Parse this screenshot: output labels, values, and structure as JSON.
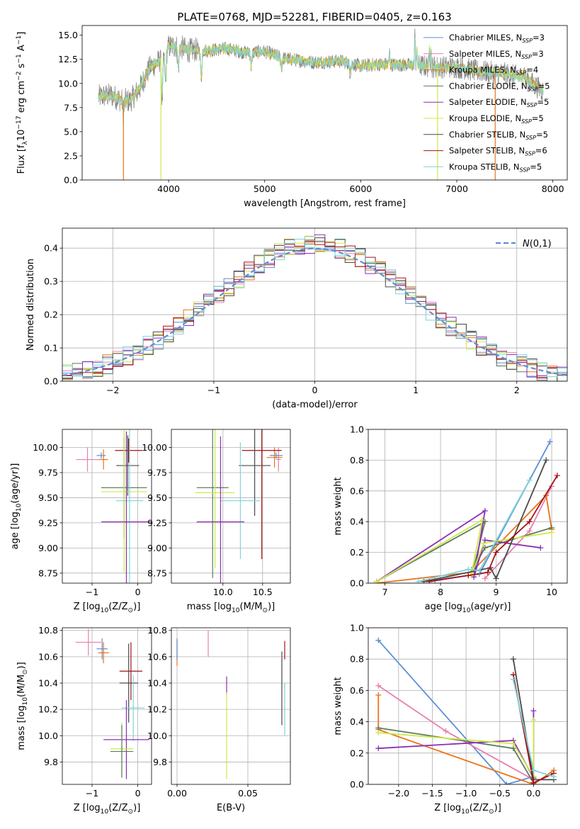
{
  "figure": {
    "title": "PLATE=0768, MJD=52281, FIBERID=0405, z=0.163"
  },
  "colors": {
    "chabrier_miles": "#5b8fd6",
    "salpeter_miles": "#e77fb0",
    "kroupa_miles": "#e8731a",
    "chabrier_elodie": "#5c7a5f",
    "salpeter_elodie": "#8b2fb3",
    "kroupa_elodie": "#cde84a",
    "chabrier_stelib": "#4a4a4a",
    "salpeter_stelib": "#a31313",
    "kroupa_stelib": "#7fd3dc",
    "data": "#808080",
    "gauss": "#5b8fd6",
    "grid": "#b0b0b0"
  },
  "legend_entries": [
    {
      "label": "Chabrier MILES, N",
      "sub": "SSP",
      "suffix": "=3",
      "color_key": "chabrier_miles"
    },
    {
      "label": "Salpeter MILES, N",
      "sub": "SSP",
      "suffix": "=3",
      "color_key": "salpeter_miles"
    },
    {
      "label": "Kroupa MILES, N",
      "sub": "SSP",
      "suffix": "=4",
      "color_key": "kroupa_miles"
    },
    {
      "label": "Chabrier ELODIE, N",
      "sub": "SSP",
      "suffix": "=5",
      "color_key": "chabrier_elodie"
    },
    {
      "label": "Salpeter ELODIE, N",
      "sub": "SSP",
      "suffix": "=5",
      "color_key": "salpeter_elodie"
    },
    {
      "label": "Kroupa ELODIE, N",
      "sub": "SSP",
      "suffix": "=5",
      "color_key": "kroupa_elodie"
    },
    {
      "label": "Chabrier STELIB, N",
      "sub": "SSP",
      "suffix": "=5",
      "color_key": "chabrier_stelib"
    },
    {
      "label": "Salpeter STELIB, N",
      "sub": "SSP",
      "suffix": "=6",
      "color_key": "salpeter_stelib"
    },
    {
      "label": "Kroupa STELIB, N",
      "sub": "SSP",
      "suffix": "=5",
      "color_key": "kroupa_stelib"
    }
  ],
  "chart_data": [
    {
      "id": "spectrum",
      "type": "line",
      "title": "PLATE=0768, MJD=52281, FIBERID=0405, z=0.163",
      "xlabel": "wavelength [Angstrom, rest frame]",
      "ylabel": "Flux [f$_\\lambda$10$^{-17}$ erg cm$^{-2}$ s$^{-1}$ A$^{-1}$]",
      "xlim": [
        3100,
        8150
      ],
      "ylim": [
        0,
        16
      ],
      "xticks": [
        4000,
        5000,
        6000,
        7000,
        8000
      ],
      "yticks": [
        0.0,
        2.5,
        5.0,
        7.5,
        10.0,
        12.5,
        15.0
      ],
      "grid": false,
      "legend": "upper right",
      "continuum": [
        [
          3270,
          8.6
        ],
        [
          3400,
          8.8
        ],
        [
          3500,
          8.3
        ],
        [
          3600,
          8.2
        ],
        [
          3700,
          9.5
        ],
        [
          3800,
          11.6
        ],
        [
          3900,
          12.3
        ],
        [
          4000,
          13.8
        ],
        [
          4100,
          13.9
        ],
        [
          4200,
          13.4
        ],
        [
          4300,
          13.5
        ],
        [
          4400,
          13.4
        ],
        [
          4600,
          13.6
        ],
        [
          4800,
          13.2
        ],
        [
          5000,
          13.3
        ],
        [
          5200,
          12.6
        ],
        [
          5500,
          12.2
        ],
        [
          5800,
          12.3
        ],
        [
          6000,
          11.8
        ],
        [
          6200,
          12.0
        ],
        [
          6500,
          11.9
        ],
        [
          6800,
          11.7
        ],
        [
          7000,
          11.7
        ],
        [
          7200,
          11.3
        ],
        [
          7500,
          11.0
        ],
        [
          7700,
          10.6
        ],
        [
          7900,
          9.2
        ]
      ],
      "dips": [
        [
          3530,
          1.5
        ],
        [
          3933,
          4.5
        ],
        [
          3968,
          3.5
        ],
        [
          4101,
          2.5
        ],
        [
          4340,
          3.0
        ],
        [
          4861,
          1.5
        ],
        [
          5175,
          1.0
        ],
        [
          5890,
          1.0
        ]
      ],
      "spikes": [
        [
          6563,
          3.5
        ],
        [
          6583,
          2.0
        ],
        [
          6300,
          1.5
        ],
        [
          6717,
          2.5
        ],
        [
          6731,
          2.0
        ],
        [
          7700,
          1.0
        ]
      ],
      "model_drops": [
        {
          "color_key": "kroupa_miles",
          "x": 3530
        },
        {
          "color_key": "kroupa_elodie",
          "x": 3920
        },
        {
          "color_key": "kroupa_elodie",
          "x": 6800
        },
        {
          "color_key": "kroupa_miles",
          "x": 7400
        }
      ]
    },
    {
      "id": "residuals",
      "type": "histogram",
      "xlabel": "(data-model)/error",
      "ylabel": "Normed distribution",
      "xlim": [
        -2.5,
        2.5
      ],
      "ylim": [
        0,
        0.46
      ],
      "xticks": [
        -2,
        -1,
        0,
        1,
        2
      ],
      "yticks": [
        0.0,
        0.1,
        0.2,
        0.3,
        0.4
      ],
      "grid": true,
      "legend": "upper right",
      "gauss_label": "$\\mathcal{N}(0,1)$",
      "bin_width": 0.1
    },
    {
      "id": "age_vs_z",
      "type": "errorbar",
      "xlabel": "Z [log$_{10}$(Z/Z$_\\odot$)]",
      "ylabel": "age  [log$_{10}$(age/yr)]",
      "xlim": [
        -1.65,
        0.3
      ],
      "ylim": [
        8.65,
        10.18
      ],
      "xticks": [
        -1,
        0
      ],
      "yticks": [
        8.75,
        9.0,
        9.25,
        9.5,
        9.75,
        10.0
      ],
      "grid": true,
      "points": [
        {
          "color_key": "salpeter_miles",
          "x": -1.1,
          "xerr": 0.25,
          "y": 9.88,
          "yerr": 0.12
        },
        {
          "color_key": "chabrier_miles",
          "x": -0.8,
          "xerr": 0.1,
          "y": 9.92,
          "yerr": 0.03
        },
        {
          "color_key": "kroupa_miles",
          "x": -0.75,
          "xerr": 0.1,
          "y": 9.88,
          "yerr": 0.1
        },
        {
          "color_key": "salpeter_stelib",
          "x": -0.2,
          "xerr": 0.3,
          "y": 9.97,
          "yerr": 0.12
        },
        {
          "color_key": "chabrier_stelib",
          "x": -0.22,
          "xerr": 0.25,
          "y": 9.82,
          "yerr": 0.3
        },
        {
          "color_key": "chabrier_elodie",
          "x": -0.3,
          "xerr": 0.5,
          "y": 9.6,
          "yerr": 0.5
        },
        {
          "color_key": "kroupa_elodie",
          "x": -0.3,
          "xerr": 0.5,
          "y": 9.56,
          "yerr": 0.8
        },
        {
          "color_key": "kroupa_stelib",
          "x": -0.18,
          "xerr": 0.3,
          "y": 9.47,
          "yerr": 0.9
        },
        {
          "color_key": "salpeter_elodie",
          "x": -0.25,
          "xerr": 0.55,
          "y": 9.26,
          "yerr": 0.9
        }
      ]
    },
    {
      "id": "age_vs_mass",
      "type": "errorbar",
      "xlabel": "mass [log$_{10}$(M/M$_\\odot$)]",
      "ylabel": "",
      "xlim": [
        9.35,
        10.85
      ],
      "ylim": [
        8.65,
        10.18
      ],
      "xticks": [
        10.0,
        10.5
      ],
      "yticks": [
        8.75,
        9.0,
        9.25,
        9.5,
        9.75,
        10.0
      ],
      "grid": true,
      "points": [
        {
          "color_key": "salpeter_miles",
          "x": 10.7,
          "xerr": 0.03,
          "y": 9.88,
          "yerr": 0.12
        },
        {
          "color_key": "chabrier_miles",
          "x": 10.67,
          "xerr": 0.08,
          "y": 9.92,
          "yerr": 0.03
        },
        {
          "color_key": "kroupa_miles",
          "x": 10.65,
          "xerr": 0.1,
          "y": 9.9,
          "yerr": 0.1
        },
        {
          "color_key": "salpeter_stelib",
          "x": 10.49,
          "xerr": 0.25,
          "y": 9.97,
          "yerr": 1.08
        },
        {
          "color_key": "chabrier_stelib",
          "x": 10.4,
          "xerr": 0.2,
          "y": 9.82,
          "yerr": 0.5
        },
        {
          "color_key": "chabrier_elodie",
          "x": 9.87,
          "xerr": 0.2,
          "y": 9.6,
          "yerr": 0.9
        },
        {
          "color_key": "kroupa_elodie",
          "x": 9.9,
          "xerr": 0.25,
          "y": 9.55,
          "yerr": 0.75
        },
        {
          "color_key": "kroupa_stelib",
          "x": 10.22,
          "xerr": 0.25,
          "y": 9.47,
          "yerr": 0.58
        },
        {
          "color_key": "salpeter_elodie",
          "x": 9.97,
          "xerr": 0.3,
          "y": 9.26,
          "yerr": 0.85
        }
      ]
    },
    {
      "id": "weight_vs_age",
      "type": "line",
      "xlabel": "age  [log$_{10}$(age/yr)]",
      "ylabel": "mass weight",
      "xlim": [
        6.7,
        10.28
      ],
      "ylim": [
        0,
        1.0
      ],
      "xticks": [
        7,
        8,
        9,
        10
      ],
      "yticks": [
        0.0,
        0.2,
        0.4,
        0.6,
        0.8,
        1.0
      ],
      "grid": true,
      "series": [
        {
          "color_key": "chabrier_miles",
          "x": [
            7.9,
            8.7,
            9.97
          ],
          "y": [
            0.02,
            0.06,
            0.92
          ]
        },
        {
          "color_key": "salpeter_miles",
          "x": [
            8.8,
            9.6,
            10.0
          ],
          "y": [
            0.03,
            0.34,
            0.63
          ]
        },
        {
          "color_key": "kroupa_miles",
          "x": [
            6.85,
            8.55,
            9.9,
            10.0
          ],
          "y": [
            0.0,
            0.07,
            0.57,
            0.35
          ]
        },
        {
          "color_key": "chabrier_elodie",
          "x": [
            6.85,
            8.8,
            8.6,
            8.8,
            10.0
          ],
          "y": [
            0.01,
            0.4,
            0.1,
            0.23,
            0.36
          ]
        },
        {
          "color_key": "salpeter_elodie",
          "x": [
            6.85,
            8.8,
            8.6,
            8.8,
            9.8
          ],
          "y": [
            0.01,
            0.47,
            0.04,
            0.28,
            0.23
          ]
        },
        {
          "color_key": "kroupa_elodie",
          "x": [
            6.85,
            8.75,
            8.55,
            8.78,
            10.0
          ],
          "y": [
            0.01,
            0.41,
            0.05,
            0.26,
            0.33
          ]
        },
        {
          "color_key": "chabrier_stelib",
          "x": [
            7.7,
            8.9,
            9.0,
            9.9
          ],
          "y": [
            0.01,
            0.1,
            0.03,
            0.8
          ]
        },
        {
          "color_key": "salpeter_stelib",
          "x": [
            7.8,
            8.5,
            8.85,
            9.0,
            9.6,
            10.1
          ],
          "y": [
            0.01,
            0.05,
            0.07,
            0.2,
            0.4,
            0.7
          ]
        },
        {
          "color_key": "kroupa_stelib",
          "x": [
            7.6,
            8.5,
            8.7,
            9.6
          ],
          "y": [
            0.01,
            0.09,
            0.08,
            0.67
          ]
        }
      ]
    },
    {
      "id": "mass_vs_z",
      "type": "errorbar",
      "xlabel": "Z [log$_{10}$(Z/Z$_\\odot$)]",
      "ylabel": "mass [log$_{10}$(M/M$_\\odot$)]",
      "xlim": [
        -1.65,
        0.3
      ],
      "ylim": [
        9.63,
        10.82
      ],
      "xticks": [
        -1,
        0
      ],
      "yticks": [
        9.8,
        10.0,
        10.2,
        10.4,
        10.6,
        10.8
      ],
      "grid": true,
      "points": [
        {
          "color_key": "salpeter_miles",
          "x": -1.08,
          "xerr": 0.28,
          "y": 10.71,
          "yerr": 0.1
        },
        {
          "color_key": "chabrier_miles",
          "x": -0.78,
          "xerr": 0.12,
          "y": 10.66,
          "yerr": 0.08
        },
        {
          "color_key": "kroupa_miles",
          "x": -0.75,
          "xerr": 0.12,
          "y": 10.63,
          "yerr": 0.08
        },
        {
          "color_key": "salpeter_stelib",
          "x": -0.15,
          "xerr": 0.25,
          "y": 10.49,
          "yerr": 0.22
        },
        {
          "color_key": "chabrier_stelib",
          "x": -0.2,
          "xerr": 0.2,
          "y": 10.4,
          "yerr": 0.3
        },
        {
          "color_key": "kroupa_stelib",
          "x": -0.1,
          "xerr": 0.25,
          "y": 10.21,
          "yerr": 0.25
        },
        {
          "color_key": "salpeter_elodie",
          "x": -0.25,
          "xerr": 0.5,
          "y": 9.97,
          "yerr": 0.3
        },
        {
          "color_key": "kroupa_elodie",
          "x": -0.35,
          "xerr": 0.25,
          "y": 9.9,
          "yerr": 0.2
        },
        {
          "color_key": "chabrier_elodie",
          "x": -0.35,
          "xerr": 0.25,
          "y": 9.88,
          "yerr": 0.2
        }
      ]
    },
    {
      "id": "mass_vs_ebv",
      "type": "errorbar",
      "xlabel": "E(B-V)",
      "ylabel": "",
      "xlim": [
        -0.004,
        0.08
      ],
      "ylim": [
        9.63,
        10.82
      ],
      "xticks": [
        0.0,
        0.05
      ],
      "yticks": [
        9.8,
        10.0,
        10.2,
        10.4,
        10.6,
        10.8
      ],
      "grid": true,
      "points": [
        {
          "color_key": "kroupa_miles",
          "x": 0.0,
          "xerr": 0.0,
          "y": 10.63,
          "yerr": 0.1
        },
        {
          "color_key": "chabrier_miles",
          "x": 0.0,
          "xerr": 0.0,
          "y": 10.66,
          "yerr": 0.08
        },
        {
          "color_key": "salpeter_miles",
          "x": 0.022,
          "xerr": 0.0,
          "y": 10.7,
          "yerr": 0.1
        },
        {
          "color_key": "salpeter_elodie",
          "x": 0.035,
          "xerr": 0.0,
          "y": 10.38,
          "yerr": 0.07
        },
        {
          "color_key": "kroupa_elodie",
          "x": 0.035,
          "xerr": 0.0,
          "y": 10.0,
          "yerr": 0.33
        },
        {
          "color_key": "salpeter_stelib",
          "x": 0.076,
          "xerr": 0.0,
          "y": 10.65,
          "yerr": 0.07
        },
        {
          "color_key": "chabrier_stelib",
          "x": 0.074,
          "xerr": 0.0,
          "y": 10.36,
          "yerr": 0.28
        },
        {
          "color_key": "kroupa_stelib",
          "x": 0.076,
          "xerr": 0.0,
          "y": 10.2,
          "yerr": 0.2
        }
      ]
    },
    {
      "id": "weight_vs_z",
      "type": "line",
      "xlabel": "Z [log$_{10}$(Z/Z$_\\odot$)]",
      "ylabel": "mass weight",
      "xlim": [
        -2.45,
        0.5
      ],
      "ylim": [
        0,
        1.0
      ],
      "xticks": [
        -2.0,
        -1.5,
        -1.0,
        -0.5,
        0.0
      ],
      "yticks": [
        0.0,
        0.2,
        0.4,
        0.6,
        0.8,
        1.0
      ],
      "grid": true,
      "series": [
        {
          "color_key": "chabrier_miles",
          "x": [
            -2.3,
            -0.4,
            0.0
          ],
          "y": [
            0.92,
            0.0,
            0.05
          ]
        },
        {
          "color_key": "salpeter_miles",
          "x": [
            -2.3,
            -1.3,
            0.0
          ],
          "y": [
            0.63,
            0.34,
            0.03
          ]
        },
        {
          "color_key": "kroupa_miles",
          "x": [
            -2.3,
            -2.3,
            0.0,
            0.3
          ],
          "y": [
            0.57,
            0.35,
            0.0,
            0.09
          ]
        },
        {
          "color_key": "chabrier_elodie",
          "x": [
            -2.3,
            -0.3,
            0.0
          ],
          "y": [
            0.36,
            0.23,
            0.01
          ]
        },
        {
          "color_key": "salpeter_elodie",
          "x": [
            -2.3,
            -0.3,
            0.0,
            0.0
          ],
          "y": [
            0.23,
            0.28,
            0.04,
            0.47
          ]
        },
        {
          "color_key": "kroupa_elodie",
          "x": [
            -2.3,
            -0.3,
            0.0,
            0.0
          ],
          "y": [
            0.33,
            0.26,
            0.05,
            0.41
          ]
        },
        {
          "color_key": "chabrier_stelib",
          "x": [
            -0.3,
            0.0,
            0.3
          ],
          "y": [
            0.8,
            0.03,
            0.03
          ]
        },
        {
          "color_key": "salpeter_stelib",
          "x": [
            -0.3,
            0.0,
            0.3
          ],
          "y": [
            0.7,
            0.01,
            0.07
          ]
        },
        {
          "color_key": "kroupa_stelib",
          "x": [
            -0.3,
            0.0,
            0.3
          ],
          "y": [
            0.67,
            0.09,
            0.05
          ]
        }
      ]
    }
  ]
}
